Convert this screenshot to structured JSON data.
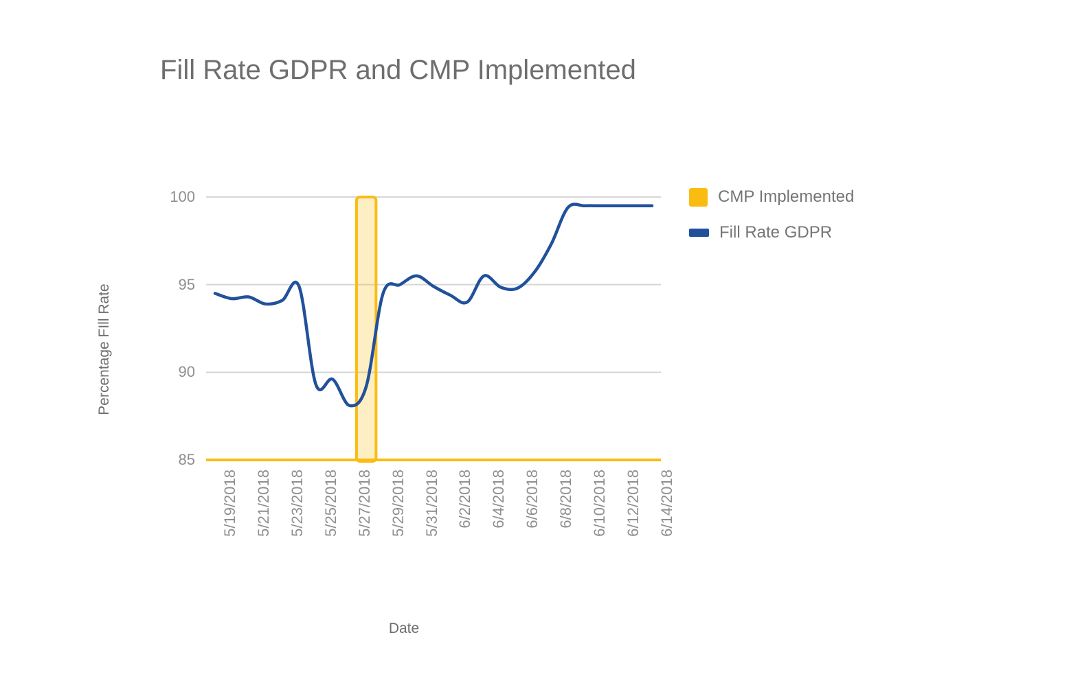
{
  "page": {
    "background": "#FFFFFF"
  },
  "chart_data": {
    "type": "line",
    "title": "Fill Rate GDPR and CMP Implemented",
    "xlabel": "Date",
    "ylabel": "Percentage FIll Rate",
    "ylim": [
      85,
      100
    ],
    "yticks": [
      "85",
      "90",
      "95",
      "100"
    ],
    "ytick_values": [
      85,
      90,
      95,
      100
    ],
    "grid": "horizontal-only",
    "legend_position": "right",
    "x": [
      "5/19/2018",
      "5/20/2018",
      "5/21/2018",
      "5/22/2018",
      "5/23/2018",
      "5/24/2018",
      "5/25/2018",
      "5/26/2018",
      "5/27/2018",
      "5/28/2018",
      "5/29/2018",
      "5/30/2018",
      "5/31/2018",
      "6/1/2018",
      "6/2/2018",
      "6/3/2018",
      "6/4/2018",
      "6/5/2018",
      "6/6/2018",
      "6/7/2018",
      "6/8/2018",
      "6/9/2018",
      "6/10/2018",
      "6/11/2018",
      "6/12/2018",
      "6/13/2018",
      "6/14/2018"
    ],
    "xtick_labels": [
      "5/19/2018",
      "5/21/2018",
      "5/23/2018",
      "5/25/2018",
      "5/27/2018",
      "5/29/2018",
      "5/31/2018",
      "6/2/2018",
      "6/4/2018",
      "6/6/2018",
      "6/8/2018",
      "6/10/2018",
      "6/12/2018",
      "6/14/2018"
    ],
    "xtick_day_indices": [
      0,
      2,
      4,
      6,
      8,
      10,
      12,
      14,
      16,
      18,
      20,
      22,
      24,
      26
    ],
    "series": [
      {
        "name": "CMP Implemented",
        "type": "vertical_band",
        "color": "#FBBC12",
        "fill_opacity": 0.25,
        "band_from_day_index": 8.42,
        "band_to_day_index": 9.58,
        "band_top_value": 100,
        "band_bottom_value": 85,
        "baseline_value": 85
      },
      {
        "name": "Fill Rate GDPR",
        "type": "smooth_line",
        "color": "#21519B",
        "values": [
          94.5,
          94.2,
          94.3,
          93.9,
          94.1,
          94.9,
          89.3,
          89.6,
          88.1,
          89.2,
          94.5,
          95.0,
          95.5,
          94.9,
          94.4,
          94.0,
          95.5,
          94.85,
          94.8,
          95.7,
          97.3,
          99.4,
          99.5,
          99.5,
          99.5,
          99.5,
          99.5
        ]
      }
    ],
    "legend": {
      "items": [
        {
          "label": "CMP Implemented",
          "swatch": "square",
          "color": "#FBBC12"
        },
        {
          "label": "Fill Rate GDPR",
          "swatch": "bar",
          "color": "#21519B"
        }
      ]
    },
    "colors": {
      "title_text": "#6E6E6E",
      "axis_title_text": "#6E6E6E",
      "tick_text": "#8F8F8F",
      "legend_text": "#757575",
      "gridline": "#D6D6D6"
    }
  }
}
